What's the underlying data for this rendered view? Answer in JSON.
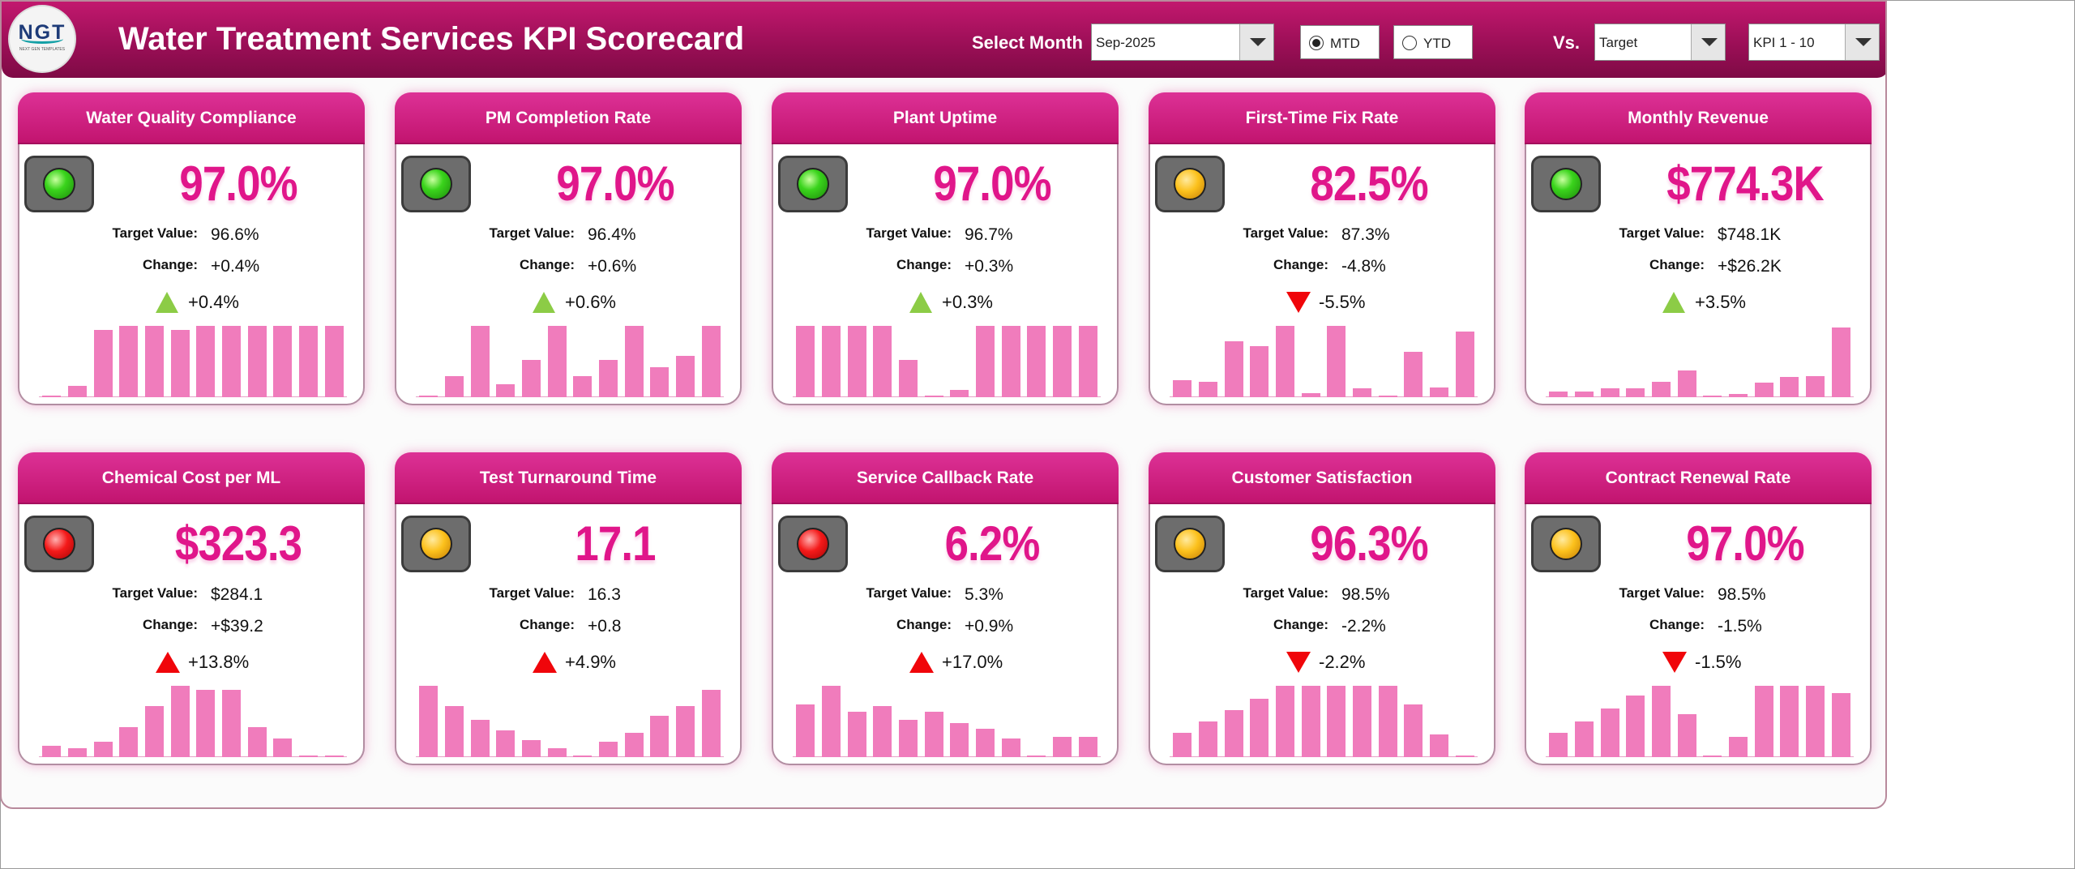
{
  "header": {
    "logo_text": "NGT",
    "logo_subtext": "NEXT GEN TEMPLATES",
    "title": "Water Treatment Services KPI Scorecard",
    "select_month_label": "Select Month",
    "month_value": "Sep-2025",
    "mtd_label": "MTD",
    "ytd_label": "YTD",
    "mtd_selected": true,
    "vs_label": "Vs.",
    "vs_value": "Target",
    "kpi_range_value": "KPI 1 - 10"
  },
  "colors": {
    "header": "#9c0f57",
    "card_header": "#d0217f",
    "value_text": "#e0168a",
    "bars": "#f07cbc",
    "up_arrow": "#8ccc46",
    "down_arrow": "#f0050a"
  },
  "cards": [
    {
      "title": "Water Quality Compliance",
      "status": "green",
      "value": "97.0%",
      "target_label": "Target Value:",
      "target": "96.6%",
      "change_label": "Change:",
      "change": "+0.4%",
      "direction": "up",
      "direction_color": "green",
      "pct": "+0.4%",
      "bars": [
        0.02,
        0.16,
        0.94,
        1.0,
        1.0,
        0.94,
        1.0,
        1.0,
        1.0,
        1.0,
        1.0,
        1.0
      ]
    },
    {
      "title": "PM Completion Rate",
      "status": "green",
      "value": "97.0%",
      "target_label": "Target Value:",
      "target": "96.4%",
      "change_label": "Change:",
      "change": "+0.6%",
      "direction": "up",
      "direction_color": "green",
      "pct": "+0.6%",
      "bars": [
        0.02,
        0.3,
        1.0,
        0.18,
        0.52,
        1.0,
        0.3,
        0.52,
        1.0,
        0.42,
        0.58,
        1.0
      ]
    },
    {
      "title": "Plant Uptime",
      "status": "green",
      "value": "97.0%",
      "target_label": "Target Value:",
      "target": "96.7%",
      "change_label": "Change:",
      "change": "+0.3%",
      "direction": "up",
      "direction_color": "green",
      "pct": "+0.3%",
      "bars": [
        1.0,
        1.0,
        1.0,
        1.0,
        0.52,
        0.02,
        0.1,
        1.0,
        1.0,
        1.0,
        1.0,
        1.0
      ]
    },
    {
      "title": "First-Time Fix Rate",
      "status": "amber",
      "value": "82.5%",
      "target_label": "Target Value:",
      "target": "87.3%",
      "change_label": "Change:",
      "change": "-4.8%",
      "direction": "down",
      "direction_color": "red",
      "pct": "-5.5%",
      "bars": [
        0.24,
        0.22,
        0.78,
        0.72,
        1.0,
        0.06,
        1.0,
        0.12,
        0.02,
        0.64,
        0.14,
        0.92
      ]
    },
    {
      "title": "Monthly Revenue",
      "status": "green",
      "value": "$774.3K",
      "target_label": "Target Value:",
      "target": "$748.1K",
      "change_label": "Change:",
      "change": "+$26.2K",
      "direction": "up",
      "direction_color": "green",
      "pct": "+3.5%",
      "bars": [
        0.08,
        0.08,
        0.12,
        0.12,
        0.22,
        0.38,
        0.02,
        0.04,
        0.2,
        0.28,
        0.3,
        0.98
      ]
    },
    {
      "title": "Chemical Cost per ML",
      "status": "red",
      "value": "$323.3",
      "target_label": "Target Value:",
      "target": "$284.1",
      "change_label": "Change:",
      "change": "+$39.2",
      "direction": "up",
      "direction_color": "red",
      "pct": "+13.8%",
      "bars": [
        0.16,
        0.12,
        0.22,
        0.42,
        0.72,
        1.0,
        0.94,
        0.94,
        0.42,
        0.26,
        0.02,
        0.02
      ]
    },
    {
      "title": "Test Turnaround Time",
      "status": "amber",
      "value": "17.1",
      "target_label": "Target Value:",
      "target": "16.3",
      "change_label": "Change:",
      "change": "+0.8",
      "direction": "up",
      "direction_color": "red",
      "pct": "+4.9%",
      "bars": [
        1.0,
        0.72,
        0.52,
        0.38,
        0.24,
        0.12,
        0.02,
        0.22,
        0.34,
        0.58,
        0.72,
        0.94
      ]
    },
    {
      "title": "Service Callback Rate",
      "status": "red",
      "value": "6.2%",
      "target_label": "Target Value:",
      "target": "5.3%",
      "change_label": "Change:",
      "change": "+0.9%",
      "direction": "up",
      "direction_color": "red",
      "pct": "+17.0%",
      "bars": [
        0.74,
        1.0,
        0.64,
        0.72,
        0.52,
        0.64,
        0.48,
        0.4,
        0.26,
        0.02,
        0.28,
        0.28
      ]
    },
    {
      "title": "Customer Satisfaction",
      "status": "amber",
      "value": "96.3%",
      "target_label": "Target Value:",
      "target": "98.5%",
      "change_label": "Change:",
      "change": "-2.2%",
      "direction": "down",
      "direction_color": "red",
      "pct": "-2.2%",
      "bars": [
        0.34,
        0.5,
        0.66,
        0.82,
        1.0,
        1.0,
        1.0,
        1.0,
        1.0,
        0.74,
        0.32,
        0.02
      ]
    },
    {
      "title": "Contract Renewal Rate",
      "status": "amber",
      "value": "97.0%",
      "target_label": "Target Value:",
      "target": "98.5%",
      "change_label": "Change:",
      "change": "-1.5%",
      "direction": "down",
      "direction_color": "red",
      "pct": "-1.5%",
      "bars": [
        0.34,
        0.5,
        0.68,
        0.86,
        1.0,
        0.6,
        0.02,
        0.28,
        1.0,
        1.0,
        1.0,
        0.9
      ]
    }
  ]
}
